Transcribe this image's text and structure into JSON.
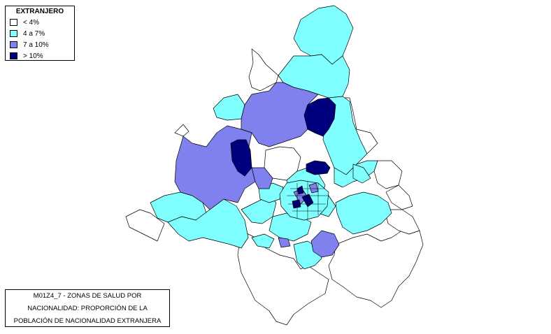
{
  "legend": {
    "title": "EXTRANJERO",
    "items": [
      {
        "label": "< 4%",
        "color": "#ffffff"
      },
      {
        "label": "4 a 7%",
        "color": "#7fffff"
      },
      {
        "label": "7 a 10%",
        "color": "#8080ee"
      },
      {
        "label": "> 10%",
        "color": "#00007f"
      }
    ]
  },
  "caption": {
    "line1": "M01Z4_7 - ZONAS DE SALUD POR",
    "line2": "NACIONALIDAD: PROPORCIÓN DE LA",
    "line3": "POBLACIÓN DE NACIONALIDAD EXTRANJERA"
  },
  "colors": {
    "low": "#ffffff",
    "mid_low": "#7fffff",
    "mid_high": "#8080ee",
    "high": "#00007f",
    "border": "#000000"
  }
}
